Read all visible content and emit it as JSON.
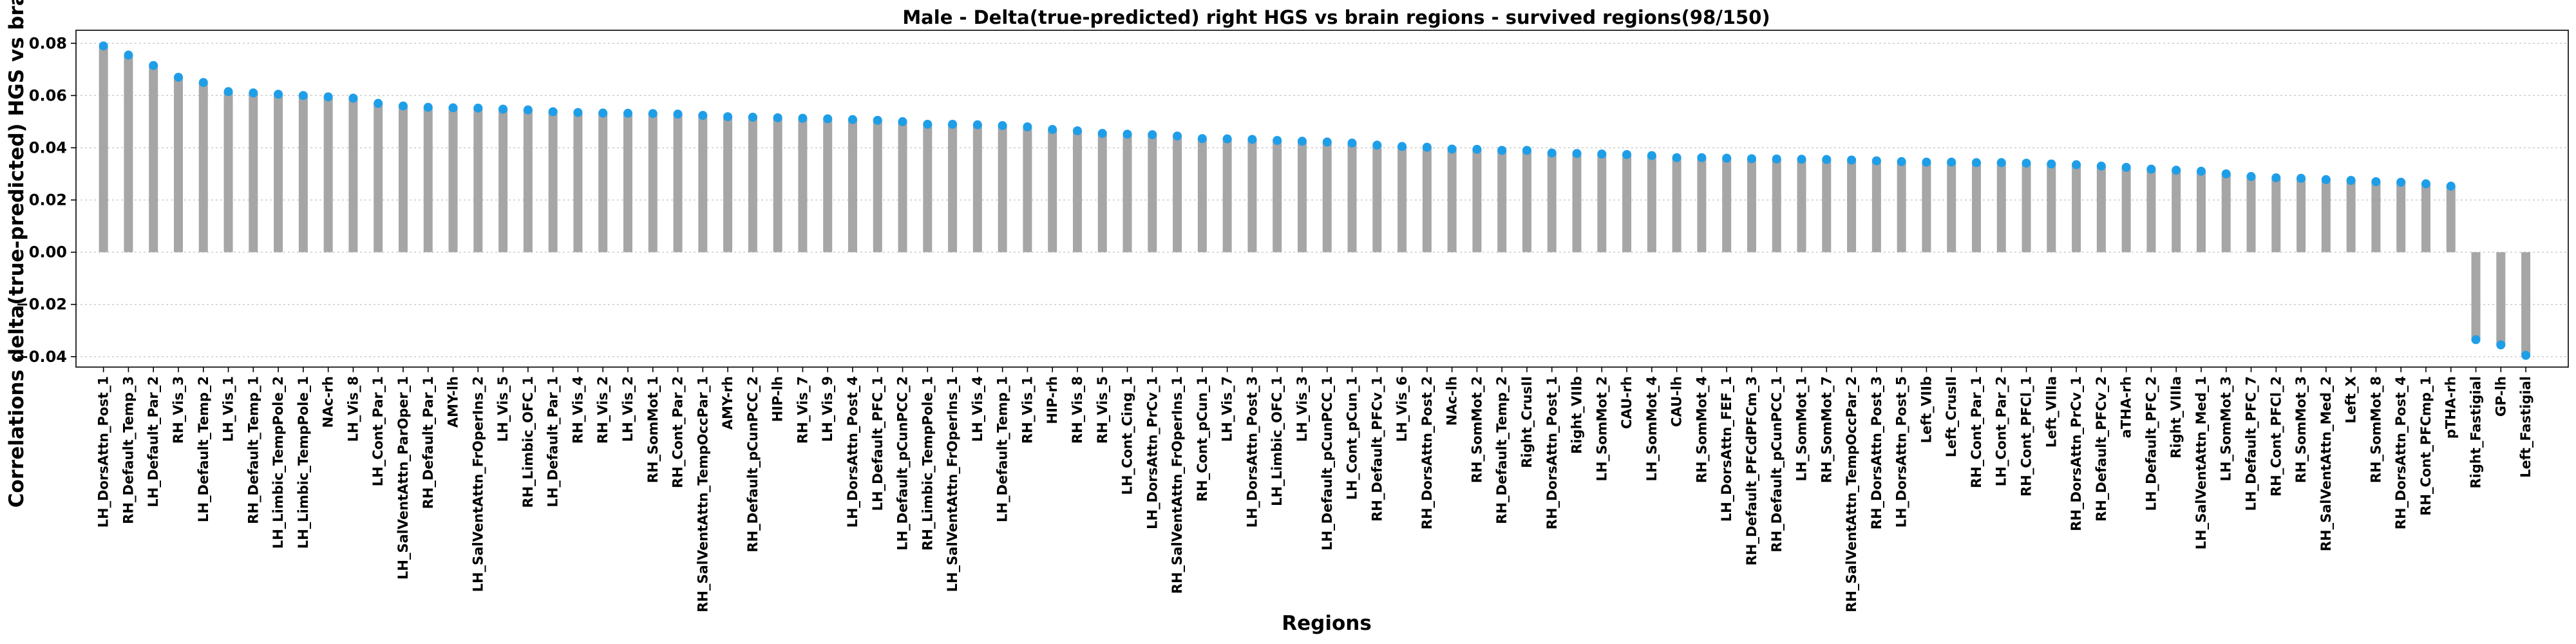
{
  "chart_data": {
    "type": "lollipop",
    "title": "Male - Delta(true-predicted) right HGS vs brain regions - survived regions(98/150)",
    "xlabel": "Regions",
    "ylabel": "Correlations delta(true-predicted) HGS vs brain",
    "ylim": [
      -0.044,
      0.085
    ],
    "yticks": [
      -0.04,
      -0.02,
      0.0,
      0.02,
      0.04,
      0.06,
      0.08
    ],
    "ytick_labels": [
      "−0.04",
      "−0.02",
      "0.00",
      "0.02",
      "0.04",
      "0.06",
      "0.08"
    ],
    "grid": "horizontal dotted",
    "colors": {
      "stem": "#a6a6a6",
      "marker": "#1f9ee8",
      "axis": "#000000",
      "grid": "#c8c8c8"
    },
    "categories": [
      "LH_DorsAttn_Post_1",
      "RH_Default_Temp_3",
      "LH_Default_Par_2",
      "RH_Vis_3",
      "LH_Default_Temp_2",
      "LH_Vis_1",
      "RH_Default_Temp_1",
      "LH_Limbic_TempPole_2",
      "LH_Limbic_TempPole_1",
      "NAc-rh",
      "LH_Vis_8",
      "LH_Cont_Par_1",
      "LH_SalVentAttn_ParOper_1",
      "RH_Default_Par_1",
      "AMY-lh",
      "LH_SalVentAttn_FrOperIns_2",
      "LH_Vis_5",
      "RH_Limbic_OFC_1",
      "LH_Default_Par_1",
      "RH_Vis_4",
      "RH_Vis_2",
      "LH_Vis_2",
      "RH_SomMot_1",
      "RH_Cont_Par_2",
      "RH_SalVentAttn_TempOccPar_1",
      "AMY-rh",
      "RH_Default_pCunPCC_2",
      "HIP-lh",
      "RH_Vis_7",
      "LH_Vis_9",
      "LH_DorsAttn_Post_4",
      "LH_Default_PFC_1",
      "LH_Default_pCunPCC_2",
      "RH_Limbic_TempPole_1",
      "LH_SalVentAttn_FrOperIns_1",
      "LH_Vis_4",
      "LH_Default_Temp_1",
      "RH_Vis_1",
      "HIP-rh",
      "RH_Vis_8",
      "RH_Vis_5",
      "LH_Cont_Cing_1",
      "LH_DorsAttn_PrCv_1",
      "RH_SalVentAttn_FrOperIns_1",
      "RH_Cont_pCun_1",
      "LH_Vis_7",
      "LH_DorsAttn_Post_3",
      "LH_Limbic_OFC_1",
      "LH_Vis_3",
      "LH_Default_pCunPCC_1",
      "LH_Cont_pCun_1",
      "RH_Default_PFCv_1",
      "LH_Vis_6",
      "RH_DorsAttn_Post_2",
      "NAc-lh",
      "RH_SomMot_2",
      "RH_Default_Temp_2",
      "Right_CrusII",
      "RH_DorsAttn_Post_1",
      "Right_VIIb",
      "LH_SomMot_2",
      "CAU-rh",
      "LH_SomMot_4",
      "CAU-lh",
      "RH_SomMot_4",
      "LH_DorsAttn_FEF_1",
      "RH_Default_PFCdPFCm_3",
      "RH_Default_pCunPCC_1",
      "LH_SomMot_1",
      "RH_SomMot_7",
      "RH_SalVentAttn_TempOccPar_2",
      "RH_DorsAttn_Post_3",
      "LH_DorsAttn_Post_5",
      "Left_VIIb",
      "Left_CrusII",
      "RH_Cont_Par_1",
      "LH_Cont_Par_2",
      "RH_Cont_PFCl_1",
      "Left_VIIIa",
      "RH_DorsAttn_PrCv_1",
      "RH_Default_PFCv_2",
      "aTHA-rh",
      "LH_Default_PFC_2",
      "Right_VIIIa",
      "LH_SalVentAttn_Med_1",
      "LH_SomMot_3",
      "LH_Default_PFC_7",
      "RH_Cont_PFCl_2",
      "RH_SomMot_3",
      "RH_SalVentAttn_Med_2",
      "Left_X",
      "RH_SomMot_8",
      "RH_DorsAttn_Post_4",
      "RH_Cont_PFCmp_1",
      "pTHA-rh",
      "Right_Fastigial",
      "GP-lh",
      "Left_Fastigial"
    ],
    "values": [
      0.079,
      0.0755,
      0.0715,
      0.067,
      0.065,
      0.0615,
      0.061,
      0.0605,
      0.06,
      0.0595,
      0.059,
      0.057,
      0.056,
      0.0555,
      0.0553,
      0.0552,
      0.0548,
      0.0545,
      0.0538,
      0.0535,
      0.0533,
      0.0532,
      0.0531,
      0.0529,
      0.0524,
      0.0519,
      0.0517,
      0.0515,
      0.0513,
      0.0511,
      0.0508,
      0.0505,
      0.05,
      0.049,
      0.049,
      0.0488,
      0.0485,
      0.048,
      0.047,
      0.0465,
      0.0455,
      0.0452,
      0.045,
      0.0445,
      0.0435,
      0.0434,
      0.0432,
      0.0428,
      0.0425,
      0.0422,
      0.0418,
      0.041,
      0.0405,
      0.0402,
      0.0395,
      0.0394,
      0.039,
      0.039,
      0.038,
      0.0378,
      0.0376,
      0.0374,
      0.037,
      0.0362,
      0.0362,
      0.036,
      0.0358,
      0.0357,
      0.0356,
      0.0355,
      0.0353,
      0.035,
      0.0347,
      0.0345,
      0.0345,
      0.0343,
      0.0343,
      0.0341,
      0.0338,
      0.0335,
      0.033,
      0.0325,
      0.0318,
      0.0314,
      0.031,
      0.03,
      0.029,
      0.0285,
      0.0283,
      0.0278,
      0.0275,
      0.027,
      0.0268,
      0.0262,
      0.0253,
      -0.0335,
      -0.0355,
      -0.0395
    ]
  }
}
